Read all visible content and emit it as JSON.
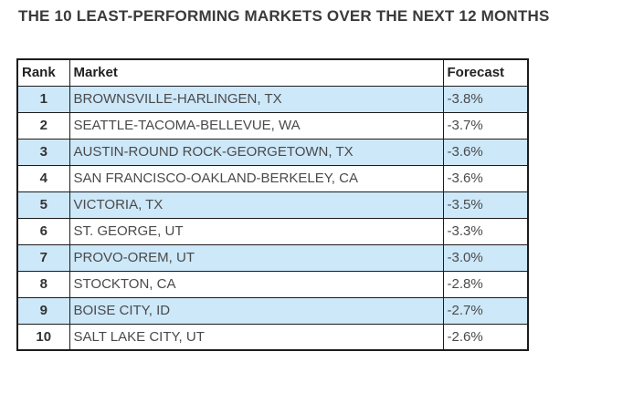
{
  "title": "THE 10 LEAST-PERFORMING MARKETS OVER THE NEXT 12 MONTHS",
  "table": {
    "columns": [
      "Rank",
      "Market",
      "Forecast"
    ],
    "rows": [
      {
        "rank": "1",
        "market": "BROWNSVILLE-HARLINGEN, TX",
        "forecast": "-3.8%"
      },
      {
        "rank": "2",
        "market": "SEATTLE-TACOMA-BELLEVUE, WA",
        "forecast": "-3.7%"
      },
      {
        "rank": "3",
        "market": "AUSTIN-ROUND ROCK-GEORGETOWN, TX",
        "forecast": "-3.6%"
      },
      {
        "rank": "4",
        "market": "SAN FRANCISCO-OAKLAND-BERKELEY, CA",
        "forecast": "-3.6%"
      },
      {
        "rank": "5",
        "market": "VICTORIA, TX",
        "forecast": "-3.5%"
      },
      {
        "rank": "6",
        "market": "ST. GEORGE, UT",
        "forecast": "-3.3%"
      },
      {
        "rank": "7",
        "market": "PROVO-OREM, UT",
        "forecast": "-3.0%"
      },
      {
        "rank": "8",
        "market": "STOCKTON, CA",
        "forecast": "-2.8%"
      },
      {
        "rank": "9",
        "market": "BOISE CITY, ID",
        "forecast": "-2.7%"
      },
      {
        "rank": "10",
        "market": "SALT LAKE CITY, UT",
        "forecast": "-2.6%"
      }
    ]
  },
  "chart_data": {
    "type": "table",
    "title": "THE 10 LEAST-PERFORMING MARKETS OVER THE NEXT 12 MONTHS",
    "columns": [
      "Rank",
      "Market",
      "Forecast"
    ],
    "ranks": [
      1,
      2,
      3,
      4,
      5,
      6,
      7,
      8,
      9,
      10
    ],
    "markets": [
      "BROWNSVILLE-HARLINGEN, TX",
      "SEATTLE-TACOMA-BELLEVUE, WA",
      "AUSTIN-ROUND ROCK-GEORGETOWN, TX",
      "SAN FRANCISCO-OAKLAND-BERKELEY, CA",
      "VICTORIA, TX",
      "ST. GEORGE, UT",
      "PROVO-OREM, UT",
      "STOCKTON, CA",
      "BOISE CITY, ID",
      "SALT LAKE CITY, UT"
    ],
    "forecast_pct": [
      -3.8,
      -3.7,
      -3.6,
      -3.6,
      -3.5,
      -3.3,
      -3.0,
      -2.8,
      -2.7,
      -2.6
    ],
    "layout_hints": {
      "highlighted_rows": "odd ranks (1,3,5,7,9)",
      "grid": true
    }
  },
  "colors": {
    "row_highlight": "#cde8f9",
    "border": "#1c1c1c",
    "title_text": "#3a3a3a",
    "body_text": "#4a4a4a"
  }
}
